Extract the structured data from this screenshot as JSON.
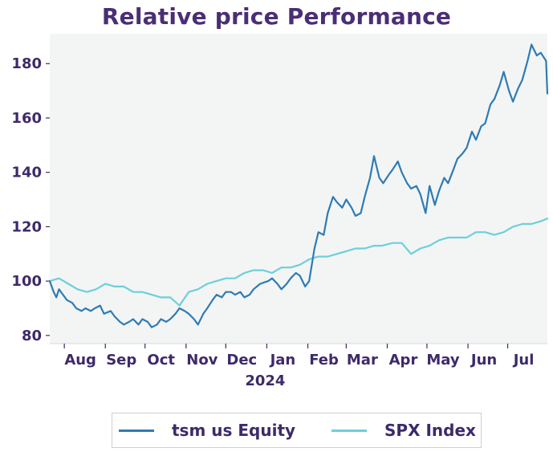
{
  "chart_data": {
    "type": "line",
    "title": "Relative price Performance",
    "xlabel": "",
    "ylabel": "",
    "ylim": [
      77,
      191
    ],
    "yticks": [
      80,
      100,
      120,
      140,
      160,
      180
    ],
    "yticklabels": [
      "80",
      "100",
      "120",
      "140",
      "160",
      "180"
    ],
    "x_range": [
      "2023-07-21",
      "2024-07-31"
    ],
    "xticks": [
      "2023-08-01",
      "2023-09-01",
      "2023-10-01",
      "2023-11-01",
      "2023-12-01",
      "2024-01-01",
      "2024-02-01",
      "2024-03-01",
      "2024-04-01",
      "2024-05-01",
      "2024-06-01",
      "2024-07-01"
    ],
    "xticklabels": [
      "Aug",
      "Sep",
      "Oct",
      "Nov",
      "Dec",
      "Jan",
      "Feb",
      "Mar",
      "Apr",
      "May",
      "Jun",
      "Jul"
    ],
    "xtick_sublabel": "2024",
    "grid": false,
    "legend_position": "bottom",
    "background": "#f3f5f4",
    "series": [
      {
        "name": "tsm us Equity",
        "color": "#2e7bb4",
        "x": [
          "2023-07-21",
          "2023-07-24",
          "2023-07-26",
          "2023-07-28",
          "2023-07-31",
          "2023-08-03",
          "2023-08-07",
          "2023-08-10",
          "2023-08-14",
          "2023-08-17",
          "2023-08-21",
          "2023-08-24",
          "2023-08-28",
          "2023-08-31",
          "2023-09-05",
          "2023-09-08",
          "2023-09-12",
          "2023-09-15",
          "2023-09-19",
          "2023-09-22",
          "2023-09-26",
          "2023-09-29",
          "2023-10-03",
          "2023-10-06",
          "2023-10-10",
          "2023-10-13",
          "2023-10-17",
          "2023-10-20",
          "2023-10-24",
          "2023-10-27",
          "2023-10-31",
          "2023-11-03",
          "2023-11-07",
          "2023-11-10",
          "2023-11-14",
          "2023-11-17",
          "2023-11-21",
          "2023-11-24",
          "2023-11-28",
          "2023-12-01",
          "2023-12-05",
          "2023-12-08",
          "2023-12-12",
          "2023-12-15",
          "2023-12-19",
          "2023-12-22",
          "2023-12-27",
          "2024-01-02",
          "2024-01-05",
          "2024-01-09",
          "2024-01-12",
          "2024-01-16",
          "2024-01-19",
          "2024-01-23",
          "2024-01-26",
          "2024-01-30",
          "2024-02-02",
          "2024-02-06",
          "2024-02-09",
          "2024-02-13",
          "2024-02-16",
          "2024-02-20",
          "2024-02-23",
          "2024-02-27",
          "2024-03-01",
          "2024-03-05",
          "2024-03-08",
          "2024-03-12",
          "2024-03-15",
          "2024-03-19",
          "2024-03-22",
          "2024-03-26",
          "2024-03-29",
          "2024-04-02",
          "2024-04-05",
          "2024-04-09",
          "2024-04-12",
          "2024-04-16",
          "2024-04-19",
          "2024-04-23",
          "2024-04-26",
          "2024-04-30",
          "2024-05-03",
          "2024-05-07",
          "2024-05-10",
          "2024-05-14",
          "2024-05-17",
          "2024-05-21",
          "2024-05-24",
          "2024-05-28",
          "2024-05-31",
          "2024-06-04",
          "2024-06-07",
          "2024-06-11",
          "2024-06-14",
          "2024-06-18",
          "2024-06-21",
          "2024-06-25",
          "2024-06-28",
          "2024-07-02",
          "2024-07-05",
          "2024-07-09",
          "2024-07-12",
          "2024-07-16",
          "2024-07-19",
          "2024-07-23",
          "2024-07-26",
          "2024-07-30",
          "2024-07-31"
        ],
        "values": [
          100,
          96,
          94,
          97,
          95,
          93,
          92,
          90,
          89,
          90,
          89,
          90,
          91,
          88,
          89,
          87,
          85,
          84,
          85,
          86,
          84,
          86,
          85,
          83,
          84,
          86,
          85,
          86,
          88,
          90,
          89,
          88,
          86,
          84,
          88,
          90,
          93,
          95,
          94,
          96,
          96,
          95,
          96,
          94,
          95,
          97,
          99,
          100,
          101,
          99,
          97,
          99,
          101,
          103,
          102,
          98,
          100,
          112,
          118,
          117,
          125,
          131,
          129,
          127,
          130,
          127,
          124,
          125,
          131,
          138,
          146,
          138,
          136,
          139,
          141,
          144,
          140,
          136,
          134,
          135,
          132,
          125,
          135,
          128,
          133,
          138,
          136,
          141,
          145,
          147,
          149,
          155,
          152,
          157,
          158,
          165,
          167,
          172,
          177,
          170,
          166,
          171,
          174,
          181,
          187,
          183,
          184,
          181,
          169
        ]
      },
      {
        "name": "SPX Index",
        "color": "#6ccfdc",
        "x": [
          "2023-07-21",
          "2023-07-28",
          "2023-08-04",
          "2023-08-11",
          "2023-08-18",
          "2023-08-25",
          "2023-09-01",
          "2023-09-08",
          "2023-09-15",
          "2023-09-22",
          "2023-09-29",
          "2023-10-06",
          "2023-10-13",
          "2023-10-20",
          "2023-10-27",
          "2023-11-03",
          "2023-11-10",
          "2023-11-17",
          "2023-11-24",
          "2023-12-01",
          "2023-12-08",
          "2023-12-15",
          "2023-12-22",
          "2023-12-29",
          "2024-01-05",
          "2024-01-12",
          "2024-01-19",
          "2024-01-26",
          "2024-02-02",
          "2024-02-09",
          "2024-02-16",
          "2024-02-23",
          "2024-03-01",
          "2024-03-08",
          "2024-03-15",
          "2024-03-22",
          "2024-03-28",
          "2024-04-05",
          "2024-04-12",
          "2024-04-19",
          "2024-04-26",
          "2024-05-03",
          "2024-05-10",
          "2024-05-17",
          "2024-05-24",
          "2024-05-31",
          "2024-06-07",
          "2024-06-14",
          "2024-06-21",
          "2024-06-28",
          "2024-07-05",
          "2024-07-12",
          "2024-07-19",
          "2024-07-26",
          "2024-07-31"
        ],
        "values": [
          100,
          101,
          99,
          97,
          96,
          97,
          99,
          98,
          98,
          96,
          96,
          95,
          94,
          94,
          91,
          96,
          97,
          99,
          100,
          101,
          101,
          103,
          104,
          104,
          103,
          105,
          105,
          106,
          108,
          109,
          109,
          110,
          111,
          112,
          112,
          113,
          113,
          114,
          114,
          110,
          112,
          113,
          115,
          116,
          116,
          116,
          118,
          118,
          117,
          118,
          120,
          121,
          121,
          122,
          123
        ]
      }
    ]
  }
}
